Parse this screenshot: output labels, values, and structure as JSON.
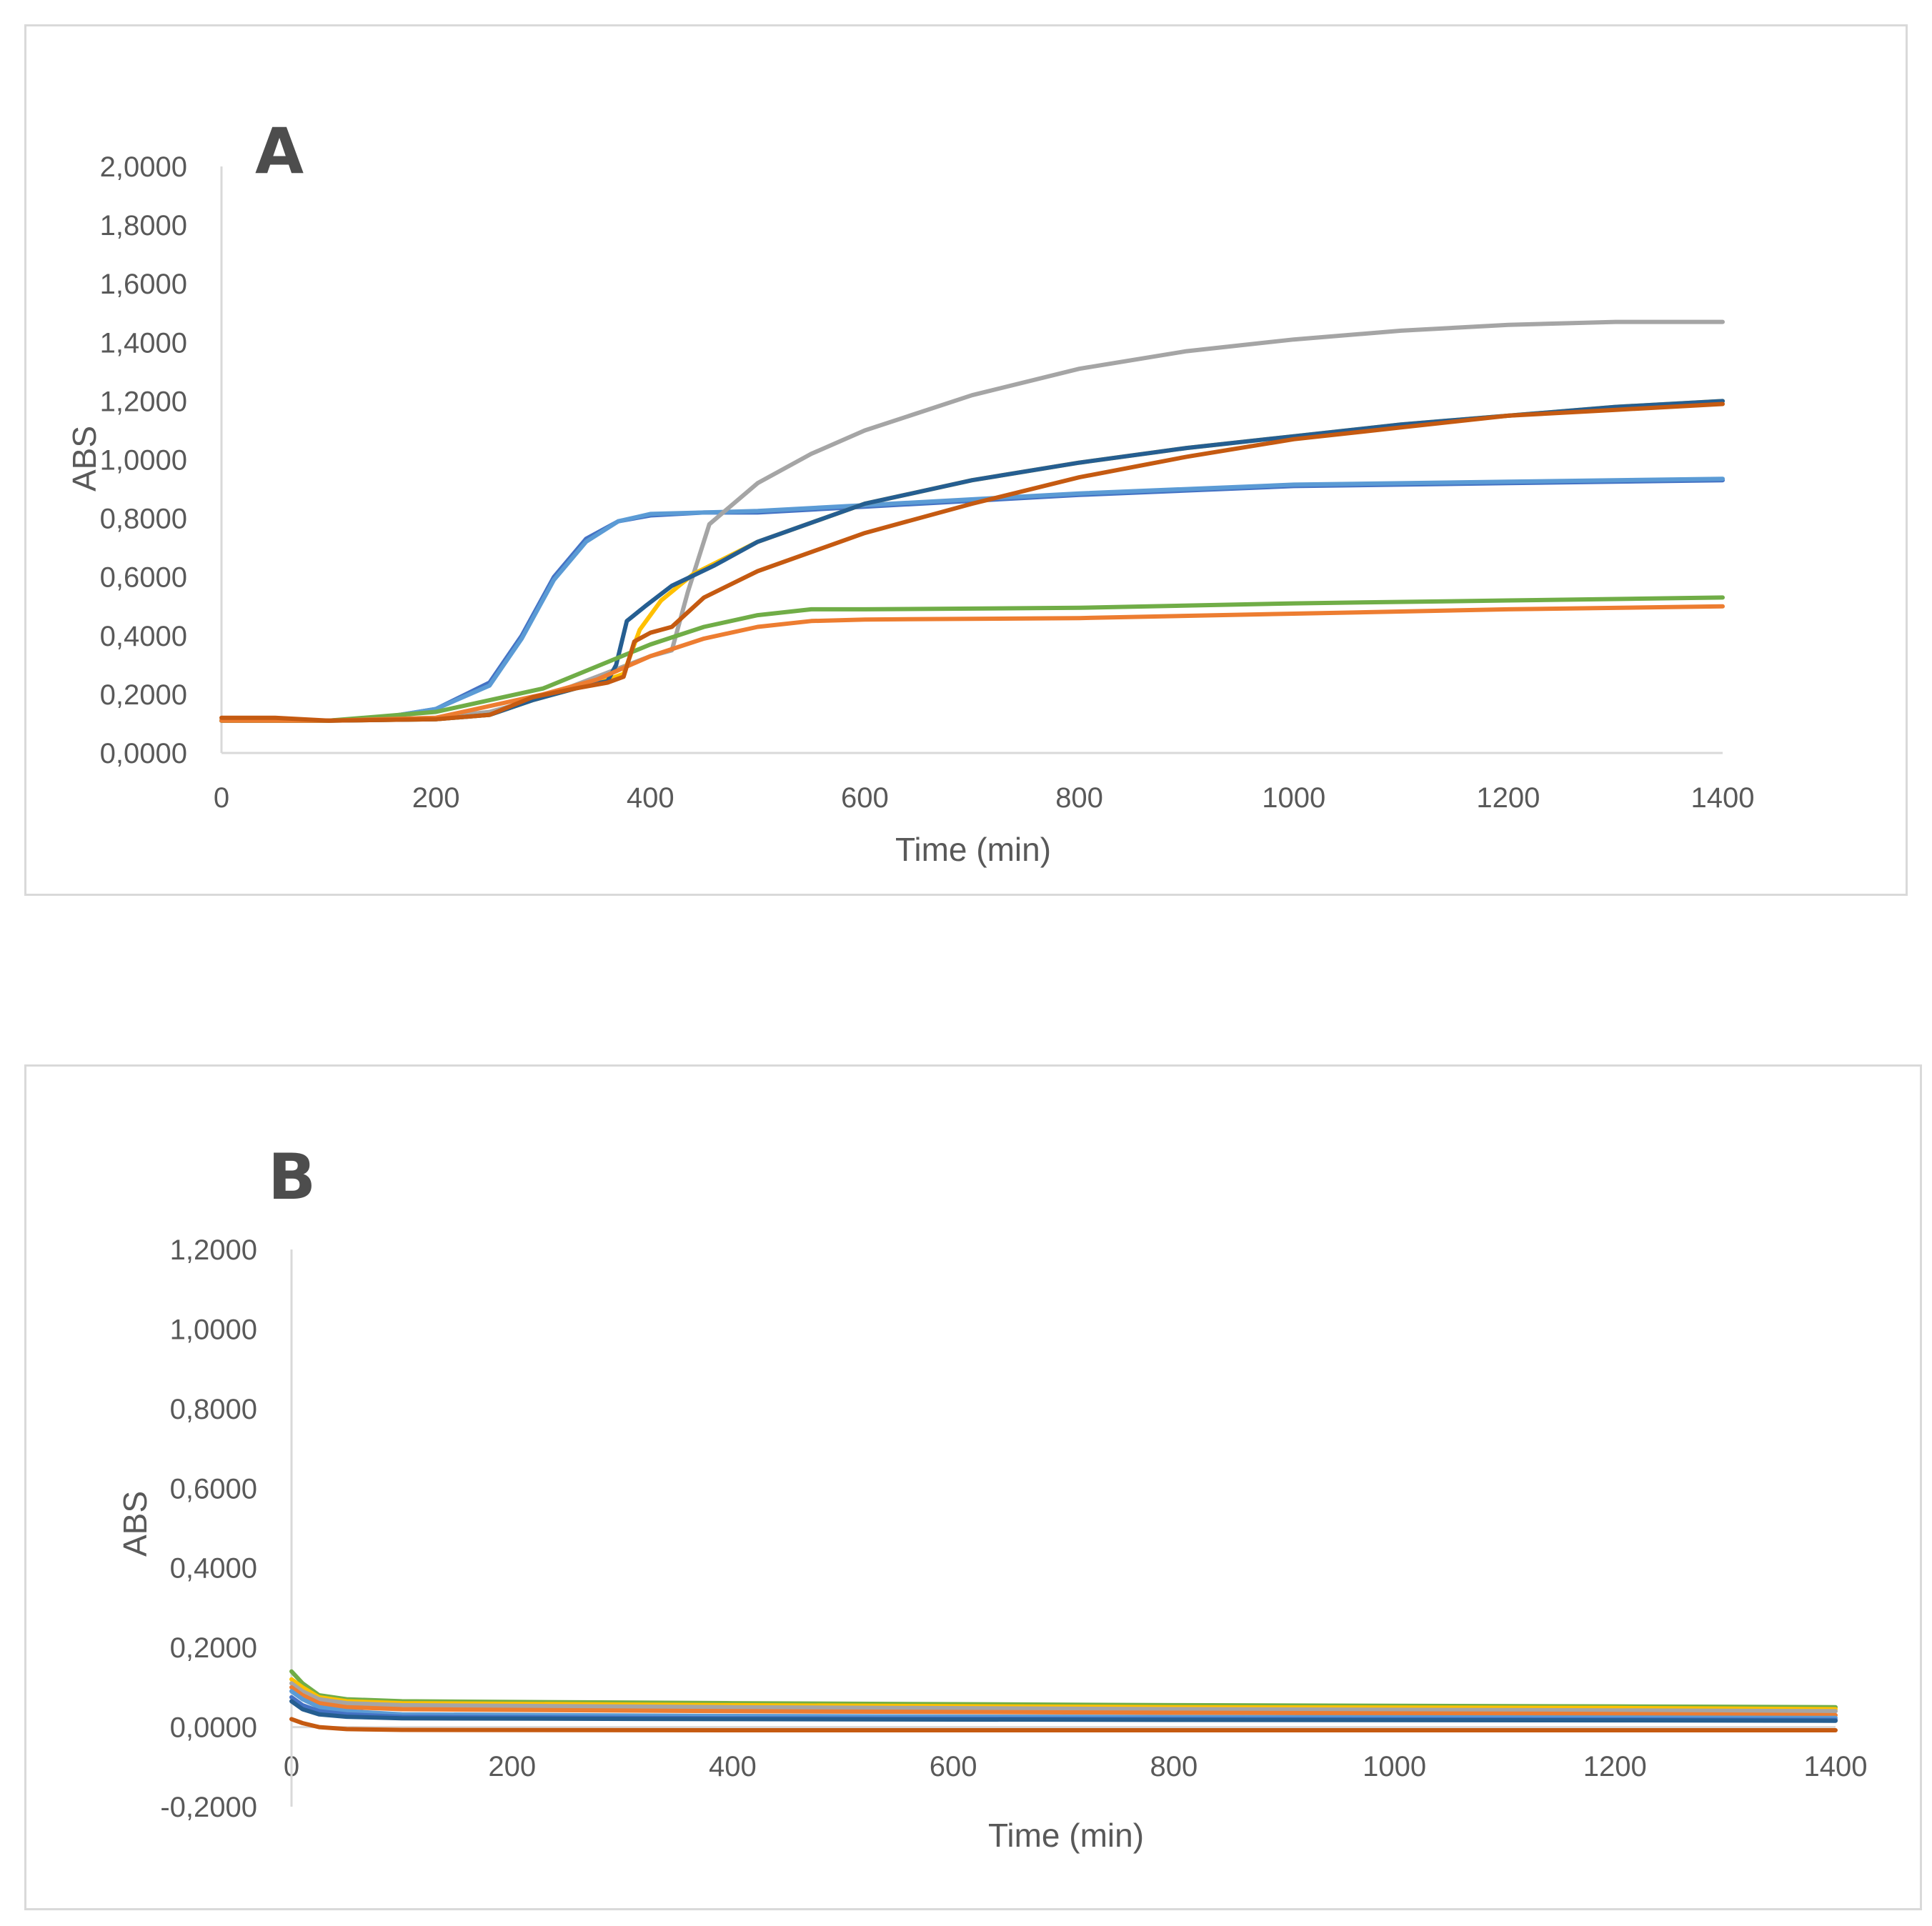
{
  "chart_data": [
    {
      "type": "line",
      "panel_label": "A",
      "xlabel": "Time (min)",
      "ylabel": "ABS",
      "xlim": [
        0,
        1400
      ],
      "ylim": [
        0,
        2
      ],
      "xticks": [
        0,
        200,
        400,
        600,
        800,
        1000,
        1200,
        1400
      ],
      "xtick_labels": [
        "0",
        "200",
        "400",
        "600",
        "800",
        "1000",
        "1200",
        "1400"
      ],
      "yticks": [
        0,
        0.2,
        0.4,
        0.6,
        0.8,
        1.0,
        1.2,
        1.4,
        1.6,
        1.8,
        2.0
      ],
      "ytick_labels": [
        "0,0000",
        "0,2000",
        "0,4000",
        "0,6000",
        "0,8000",
        "1,0000",
        "1,2000",
        "1,4000",
        "1,6000",
        "1,8000",
        "2,0000"
      ],
      "grid": false,
      "series": [
        {
          "color": "#4472c4",
          "points": [
            [
              0,
              0.11
            ],
            [
              100,
              0.11
            ],
            [
              150,
              0.12
            ],
            [
              200,
              0.15
            ],
            [
              250,
              0.24
            ],
            [
              280,
              0.4
            ],
            [
              310,
              0.6
            ],
            [
              340,
              0.73
            ],
            [
              370,
              0.79
            ],
            [
              400,
              0.81
            ],
            [
              450,
              0.82
            ],
            [
              500,
              0.82
            ],
            [
              600,
              0.84
            ],
            [
              800,
              0.88
            ],
            [
              1000,
              0.91
            ],
            [
              1200,
              0.92
            ],
            [
              1400,
              0.93
            ]
          ]
        },
        {
          "color": "#5b9bd5",
          "points": [
            [
              0,
              0.11
            ],
            [
              100,
              0.11
            ],
            [
              150,
              0.12
            ],
            [
              200,
              0.15
            ],
            [
              250,
              0.23
            ],
            [
              280,
              0.39
            ],
            [
              310,
              0.59
            ],
            [
              340,
              0.72
            ],
            [
              370,
              0.79
            ],
            [
              400,
              0.815
            ],
            [
              450,
              0.82
            ],
            [
              500,
              0.825
            ],
            [
              600,
              0.845
            ],
            [
              800,
              0.885
            ],
            [
              1000,
              0.915
            ],
            [
              1200,
              0.925
            ],
            [
              1400,
              0.935
            ]
          ]
        },
        {
          "color": "#a5a5a5",
          "points": [
            [
              0,
              0.11
            ],
            [
              100,
              0.11
            ],
            [
              200,
              0.12
            ],
            [
              250,
              0.14
            ],
            [
              300,
              0.19
            ],
            [
              350,
              0.26
            ],
            [
              400,
              0.33
            ],
            [
              420,
              0.35
            ],
            [
              435,
              0.55
            ],
            [
              455,
              0.78
            ],
            [
              500,
              0.92
            ],
            [
              550,
              1.02
            ],
            [
              600,
              1.1
            ],
            [
              700,
              1.22
            ],
            [
              800,
              1.31
            ],
            [
              900,
              1.37
            ],
            [
              1000,
              1.41
            ],
            [
              1100,
              1.44
            ],
            [
              1200,
              1.46
            ],
            [
              1300,
              1.47
            ],
            [
              1400,
              1.47
            ]
          ]
        },
        {
          "color": "#ffc000",
          "points": [
            [
              0,
              0.11
            ],
            [
              100,
              0.11
            ],
            [
              200,
              0.115
            ],
            [
              250,
              0.13
            ],
            [
              290,
              0.18
            ],
            [
              330,
              0.22
            ],
            [
              360,
              0.25
            ],
            [
              375,
              0.27
            ],
            [
              390,
              0.42
            ],
            [
              410,
              0.52
            ],
            [
              440,
              0.61
            ],
            [
              500,
              0.72
            ],
            [
              600,
              0.85
            ],
            [
              700,
              0.93
            ],
            [
              800,
              0.99
            ],
            [
              900,
              1.04
            ],
            [
              1000,
              1.08
            ],
            [
              1100,
              1.12
            ],
            [
              1200,
              1.15
            ],
            [
              1300,
              1.18
            ],
            [
              1400,
              1.2
            ]
          ]
        },
        {
          "color": "#255e91",
          "points": [
            [
              0,
              0.11
            ],
            [
              100,
              0.11
            ],
            [
              200,
              0.115
            ],
            [
              250,
              0.13
            ],
            [
              290,
              0.18
            ],
            [
              330,
              0.22
            ],
            [
              360,
              0.245
            ],
            [
              368,
              0.3
            ],
            [
              378,
              0.45
            ],
            [
              395,
              0.5
            ],
            [
              420,
              0.57
            ],
            [
              460,
              0.64
            ],
            [
              500,
              0.72
            ],
            [
              600,
              0.85
            ],
            [
              700,
              0.93
            ],
            [
              800,
              0.99
            ],
            [
              900,
              1.04
            ],
            [
              1000,
              1.08
            ],
            [
              1100,
              1.12
            ],
            [
              1200,
              1.15
            ],
            [
              1300,
              1.18
            ],
            [
              1400,
              1.2
            ]
          ]
        },
        {
          "color": "#70ad47",
          "points": [
            [
              0,
              0.11
            ],
            [
              100,
              0.11
            ],
            [
              200,
              0.14
            ],
            [
              300,
              0.22
            ],
            [
              400,
              0.37
            ],
            [
              450,
              0.43
            ],
            [
              500,
              0.47
            ],
            [
              550,
              0.49
            ],
            [
              600,
              0.49
            ],
            [
              800,
              0.495
            ],
            [
              1000,
              0.51
            ],
            [
              1200,
              0.52
            ],
            [
              1400,
              0.53
            ]
          ]
        },
        {
          "color": "#ed7d31",
          "points": [
            [
              0,
              0.11
            ],
            [
              100,
              0.11
            ],
            [
              200,
              0.12
            ],
            [
              300,
              0.2
            ],
            [
              350,
              0.25
            ],
            [
              400,
              0.33
            ],
            [
              450,
              0.39
            ],
            [
              500,
              0.43
            ],
            [
              550,
              0.45
            ],
            [
              600,
              0.455
            ],
            [
              800,
              0.46
            ],
            [
              1000,
              0.475
            ],
            [
              1200,
              0.49
            ],
            [
              1400,
              0.5
            ]
          ]
        },
        {
          "color": "#c55a11",
          "points": [
            [
              0,
              0.12
            ],
            [
              50,
              0.12
            ],
            [
              100,
              0.11
            ],
            [
              200,
              0.115
            ],
            [
              250,
              0.13
            ],
            [
              290,
              0.19
            ],
            [
              330,
              0.22
            ],
            [
              360,
              0.24
            ],
            [
              375,
              0.26
            ],
            [
              385,
              0.38
            ],
            [
              400,
              0.41
            ],
            [
              420,
              0.43
            ],
            [
              450,
              0.53
            ],
            [
              500,
              0.62
            ],
            [
              600,
              0.75
            ],
            [
              700,
              0.85
            ],
            [
              800,
              0.94
            ],
            [
              900,
              1.01
            ],
            [
              1000,
              1.07
            ],
            [
              1100,
              1.11
            ],
            [
              1200,
              1.15
            ],
            [
              1300,
              1.17
            ],
            [
              1400,
              1.19
            ]
          ]
        }
      ]
    },
    {
      "type": "line",
      "panel_label": "B",
      "xlabel": "Time (min)",
      "ylabel": "ABS",
      "xlim": [
        0,
        1400
      ],
      "ylim": [
        -0.2,
        1.2
      ],
      "xticks": [
        0,
        200,
        400,
        600,
        800,
        1000,
        1200,
        1400
      ],
      "xtick_labels": [
        "0",
        "200",
        "400",
        "600",
        "800",
        "1000",
        "1200",
        "1400"
      ],
      "yticks": [
        -0.2,
        0,
        0.2,
        0.4,
        0.6,
        0.8,
        1.0,
        1.2
      ],
      "ytick_labels": [
        "-0,2000",
        "0,0000",
        "0,2000",
        "0,4000",
        "0,6000",
        "0,8000",
        "1,0000",
        "1,2000"
      ],
      "grid": false,
      "series": [
        {
          "color": "#70ad47",
          "points": [
            [
              0,
              0.14
            ],
            [
              10,
              0.11
            ],
            [
              25,
              0.08
            ],
            [
              50,
              0.07
            ],
            [
              100,
              0.065
            ],
            [
              400,
              0.06
            ],
            [
              800,
              0.055
            ],
            [
              1200,
              0.052
            ],
            [
              1400,
              0.05
            ]
          ]
        },
        {
          "color": "#ffc000",
          "points": [
            [
              0,
              0.12
            ],
            [
              10,
              0.1
            ],
            [
              25,
              0.075
            ],
            [
              50,
              0.065
            ],
            [
              100,
              0.06
            ],
            [
              400,
              0.055
            ],
            [
              800,
              0.05
            ],
            [
              1200,
              0.048
            ],
            [
              1400,
              0.045
            ]
          ]
        },
        {
          "color": "#a5a5a5",
          "points": [
            [
              0,
              0.11
            ],
            [
              10,
              0.09
            ],
            [
              25,
              0.07
            ],
            [
              50,
              0.06
            ],
            [
              100,
              0.055
            ],
            [
              400,
              0.05
            ],
            [
              800,
              0.045
            ],
            [
              1200,
              0.042
            ],
            [
              1400,
              0.04
            ]
          ]
        },
        {
          "color": "#ed7d31",
          "points": [
            [
              0,
              0.1
            ],
            [
              10,
              0.08
            ],
            [
              25,
              0.06
            ],
            [
              50,
              0.05
            ],
            [
              100,
              0.045
            ],
            [
              400,
              0.04
            ],
            [
              800,
              0.036
            ],
            [
              1200,
              0.033
            ],
            [
              1400,
              0.03
            ]
          ]
        },
        {
          "color": "#5b9bd5",
          "points": [
            [
              0,
              0.09
            ],
            [
              10,
              0.07
            ],
            [
              25,
              0.05
            ],
            [
              50,
              0.04
            ],
            [
              100,
              0.032
            ],
            [
              400,
              0.028
            ],
            [
              800,
              0.025
            ],
            [
              1200,
              0.024
            ],
            [
              1400,
              0.023
            ]
          ]
        },
        {
          "color": "#4472c4",
          "points": [
            [
              0,
              0.075
            ],
            [
              10,
              0.055
            ],
            [
              25,
              0.04
            ],
            [
              50,
              0.032
            ],
            [
              100,
              0.026
            ],
            [
              400,
              0.022
            ],
            [
              800,
              0.02
            ],
            [
              1200,
              0.019
            ],
            [
              1400,
              0.018
            ]
          ]
        },
        {
          "color": "#255e91",
          "points": [
            [
              0,
              0.065
            ],
            [
              10,
              0.045
            ],
            [
              25,
              0.032
            ],
            [
              50,
              0.026
            ],
            [
              100,
              0.022
            ],
            [
              400,
              0.02
            ],
            [
              800,
              0.018
            ],
            [
              1200,
              0.017
            ],
            [
              1400,
              0.016
            ]
          ]
        },
        {
          "color": "#c55a11",
          "points": [
            [
              0,
              0.02
            ],
            [
              10,
              0.01
            ],
            [
              25,
              0.0
            ],
            [
              50,
              -0.005
            ],
            [
              100,
              -0.007
            ],
            [
              400,
              -0.008
            ],
            [
              800,
              -0.008
            ],
            [
              1200,
              -0.008
            ],
            [
              1400,
              -0.008
            ]
          ]
        }
      ]
    }
  ]
}
